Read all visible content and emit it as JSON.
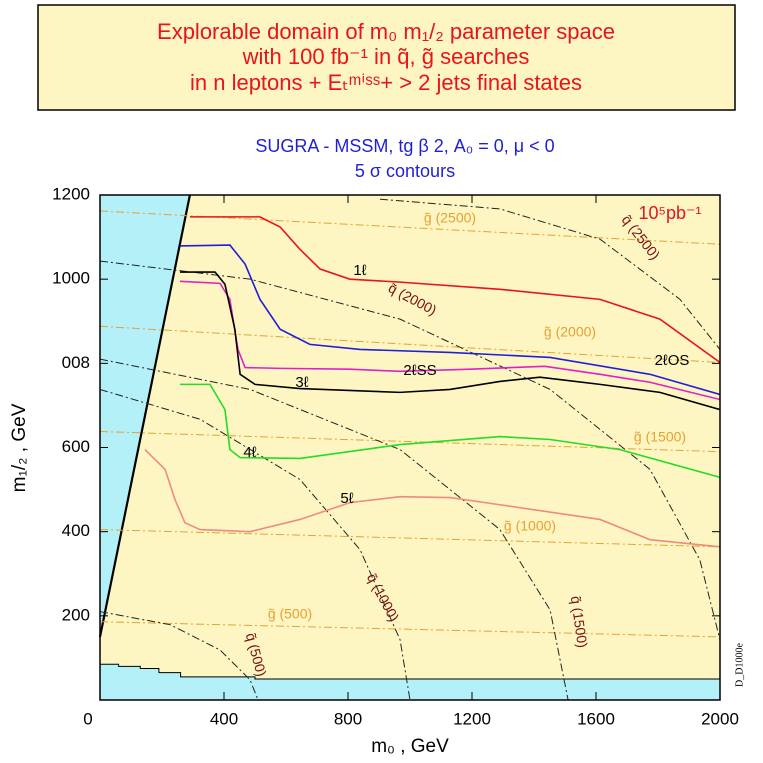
{
  "chart_data": {
    "type": "line",
    "title": [
      "Explorable domain of m₀ m₁/₂ parameter space",
      "with 100 fb⁻¹ in q̃, g̃ searches",
      "in n leptons + Eₜᵐⁱˢˢ+ > 2 jets final states"
    ],
    "subtitle": [
      "SUGRA - MSSM, tg β 2, A₀ = 0, μ < 0",
      "5 σ contours"
    ],
    "x_label": "m₀ , GeV",
    "y_label": "m₁/₂ , GeV",
    "annotations": [
      "10⁵pb⁻¹",
      "D_D1000e"
    ],
    "xlim": [
      0,
      2000
    ],
    "ylim": [
      0,
      1200
    ],
    "xticks": [
      0,
      400,
      800,
      1200,
      1600,
      2000
    ],
    "yticks": [
      200,
      400,
      600,
      {
        "value": 800,
        "label": "008"
      },
      1000,
      1200
    ],
    "grid": false,
    "series": [
      {
        "name": "1ℓ",
        "color": "#e8141c",
        "x": [
          290,
          516,
          581,
          645,
          710,
          806,
          968,
          1290,
          1613,
          1806,
          2000
        ],
        "values": [
          1148,
          1148,
          1124,
          1071,
          1024,
          1000,
          993,
          976,
          952,
          905,
          802
        ]
      },
      {
        "name": "2ℓOS",
        "color": "#1f1fd8",
        "x": [
          258,
          419,
          468,
          516,
          581,
          677,
          839,
          1129,
          1452,
          1774,
          2000
        ],
        "values": [
          1079,
          1081,
          1036,
          952,
          881,
          845,
          833,
          826,
          814,
          774,
          726
        ]
      },
      {
        "name": "2ℓSS",
        "color": "#e020c8",
        "x": [
          258,
          387,
          419,
          445,
          468,
          581,
          806,
          968,
          1194,
          1435,
          1613,
          1774,
          2000
        ],
        "values": [
          995,
          990,
          952,
          833,
          790,
          788,
          786,
          781,
          786,
          793,
          774,
          755,
          714
        ]
      },
      {
        "name": "3ℓ",
        "color": "#000000",
        "x": [
          258,
          371,
          403,
          435,
          452,
          500,
          645,
          968,
          1129,
          1290,
          1419,
          1613,
          1806,
          2000
        ],
        "values": [
          1017,
          1017,
          988,
          881,
          774,
          750,
          740,
          731,
          738,
          757,
          767,
          750,
          731,
          690
        ]
      },
      {
        "name": "4ℓ",
        "color": "#22dd22",
        "x": [
          258,
          355,
          403,
          419,
          452,
          645,
          968,
          1290,
          1452,
          1677,
          2000
        ],
        "values": [
          750,
          750,
          690,
          595,
          576,
          574,
          607,
          626,
          619,
          595,
          529
        ]
      },
      {
        "name": "5ℓ",
        "color": "#f08a80",
        "x": [
          145,
          210,
          242,
          274,
          323,
          484,
          645,
          806,
          968,
          1129,
          1290,
          1613,
          1774,
          2000
        ],
        "values": [
          595,
          548,
          476,
          421,
          405,
          400,
          429,
          469,
          483,
          481,
          464,
          429,
          381,
          364
        ]
      }
    ],
    "gluino_color": "#e8a030",
    "gluino_lines": [
      {
        "name": "g̃ (2500)",
        "x": [
          0,
          2000
        ],
        "values": [
          1162,
          1083
        ]
      },
      {
        "name": "g̃ (2000)",
        "x": [
          0,
          2000
        ],
        "values": [
          888,
          802
        ]
      },
      {
        "name": "g̃ (1500)",
        "x": [
          0,
          2000
        ],
        "values": [
          638,
          590
        ]
      },
      {
        "name": "g̃ (1000)",
        "x": [
          0,
          2000
        ],
        "values": [
          405,
          364
        ]
      },
      {
        "name": "g̃ (500)",
        "x": [
          0,
          2000
        ],
        "values": [
          186,
          150
        ]
      }
    ],
    "squark_color": "#7a1010",
    "squark_lines": [
      {
        "name": "q̃ (2500)",
        "x": [
          903,
          1290,
          1613,
          1871,
          2000
        ],
        "values": [
          1190,
          1167,
          1095,
          952,
          833
        ]
      },
      {
        "name": "q̃ (2000)",
        "x": [
          0,
          484,
          968,
          1452,
          1774,
          1935,
          2000
        ],
        "values": [
          1043,
          1000,
          905,
          738,
          548,
          333,
          143
        ]
      },
      {
        "name": "q̃ (1500)",
        "x": [
          0,
          484,
          968,
          1290,
          1452,
          1510
        ],
        "values": [
          810,
          738,
          595,
          405,
          214,
          0
        ]
      },
      {
        "name": "q̃ (1000)",
        "x": [
          0,
          323,
          645,
          839,
          968,
          1000
        ],
        "values": [
          738,
          667,
          524,
          357,
          143,
          0
        ]
      },
      {
        "name": "q̃ (500)",
        "x": [
          0,
          226,
          387,
          484,
          510
        ],
        "values": [
          210,
          179,
          119,
          48,
          0
        ]
      }
    ],
    "excluded_color": "#b4f0f8",
    "theory_boundary": {
      "x": [
        0,
        290
      ],
      "values": [
        150,
        1200
      ]
    },
    "experiment_boundary": {
      "x": [
        0,
        60,
        130,
        190,
        260,
        500,
        2000
      ],
      "values": [
        85,
        80,
        75,
        65,
        55,
        50,
        50
      ]
    }
  }
}
